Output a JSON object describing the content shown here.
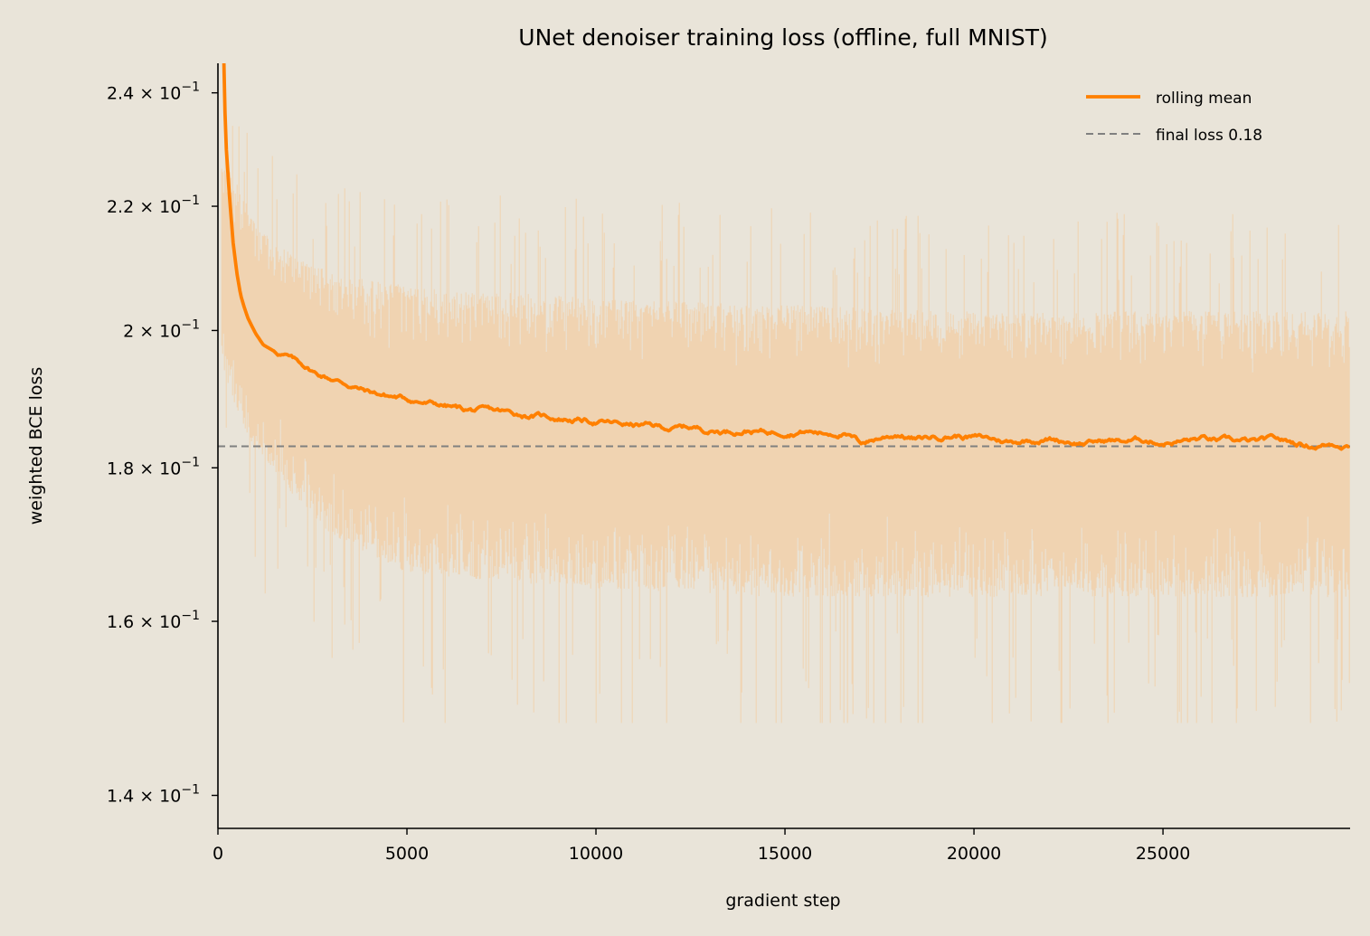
{
  "chart_data": {
    "type": "line",
    "title": "UNet denoiser training loss (offline, full MNIST)",
    "xlabel": "gradient step",
    "ylabel": "weighted BCE loss",
    "xlim": [
      0,
      29950
    ],
    "ylim": [
      0.1365,
      0.2455
    ],
    "yscale": "log",
    "grid": false,
    "legend_position": "top-right",
    "x_ticks": [
      {
        "value": 0,
        "label": "0"
      },
      {
        "value": 5000,
        "label": "5000"
      },
      {
        "value": 10000,
        "label": "10000"
      },
      {
        "value": 15000,
        "label": "15000"
      },
      {
        "value": 20000,
        "label": "20000"
      },
      {
        "value": 25000,
        "label": "25000"
      }
    ],
    "y_ticks": [
      {
        "value": 0.14,
        "mantissa": "1.4",
        "base": "10",
        "exponent": "−1"
      },
      {
        "value": 0.16,
        "mantissa": "1.6",
        "base": "10",
        "exponent": "−1"
      },
      {
        "value": 0.18,
        "mantissa": "1.8",
        "base": "10",
        "exponent": "−1"
      },
      {
        "value": 0.2,
        "mantissa": "2",
        "base": "10",
        "exponent": "−1"
      },
      {
        "value": 0.22,
        "mantissa": "2.2",
        "base": "10",
        "exponent": "−1"
      },
      {
        "value": 0.24,
        "mantissa": "2.4",
        "base": "10",
        "exponent": "−1"
      }
    ],
    "colors": {
      "background": "#e9e4d9",
      "rolling_mean": "#ff8000",
      "raw_loss": "#f5c48f",
      "final_line": "#808080"
    },
    "series": [
      {
        "name": "rolling mean",
        "style": "solid",
        "x": [
          150,
          200,
          300,
          400,
          500,
          600,
          700,
          800,
          1000,
          1200,
          1500,
          1800,
          2000,
          2300,
          2600,
          3000,
          3500,
          4000,
          4500,
          5000,
          5500,
          6000,
          6500,
          7000,
          7500,
          8000,
          8500,
          9000,
          9500,
          10000,
          10500,
          11000,
          11500,
          12000,
          12500,
          13000,
          13500,
          14000,
          14500,
          15000,
          15500,
          16000,
          16500,
          17000,
          17500,
          18000,
          18500,
          19000,
          19500,
          20000,
          20500,
          21000,
          21500,
          22000,
          22500,
          23000,
          23500,
          24000,
          24500,
          25000,
          25500,
          26000,
          26500,
          27000,
          27500,
          28000,
          28500,
          29000,
          29500,
          29950
        ],
        "y": [
          0.248,
          0.232,
          0.222,
          0.214,
          0.209,
          0.2055,
          0.2035,
          0.2018,
          0.1995,
          0.1978,
          0.1968,
          0.1962,
          0.1955,
          0.1946,
          0.1935,
          0.1928,
          0.1918,
          0.1908,
          0.1902,
          0.1898,
          0.1892,
          0.1888,
          0.1882,
          0.188,
          0.1878,
          0.1875,
          0.1873,
          0.187,
          0.1868,
          0.1865,
          0.1862,
          0.186,
          0.1858,
          0.1855,
          0.1857,
          0.1853,
          0.1852,
          0.1854,
          0.185,
          0.1852,
          0.1853,
          0.1849,
          0.185,
          0.1835,
          0.1842,
          0.1848,
          0.184,
          0.1844,
          0.1846,
          0.1843,
          0.184,
          0.1836,
          0.184,
          0.1841,
          0.1838,
          0.1835,
          0.1838,
          0.1837,
          0.1839,
          0.1836,
          0.1838,
          0.184,
          0.1837,
          0.1836,
          0.1835,
          0.1838,
          0.1834,
          0.1831,
          0.1834,
          0.1833
        ]
      },
      {
        "name": "final loss 0.18",
        "style": "dashed",
        "x": [
          0,
          29950
        ],
        "y": [
          0.183,
          0.183
        ]
      }
    ],
    "raw_loss_band": {
      "x": [
        100,
        500,
        1000,
        2000,
        3000,
        5000,
        7500,
        10000,
        15000,
        20000,
        25000,
        29950
      ],
      "y_low": [
        0.195,
        0.188,
        0.182,
        0.176,
        0.171,
        0.166,
        0.165,
        0.164,
        0.163,
        0.163,
        0.163,
        0.163
      ],
      "y_high": [
        0.228,
        0.224,
        0.217,
        0.212,
        0.209,
        0.207,
        0.206,
        0.205,
        0.204,
        0.203,
        0.203,
        0.203
      ],
      "y_min": 0.148,
      "y_max": 0.234
    }
  }
}
